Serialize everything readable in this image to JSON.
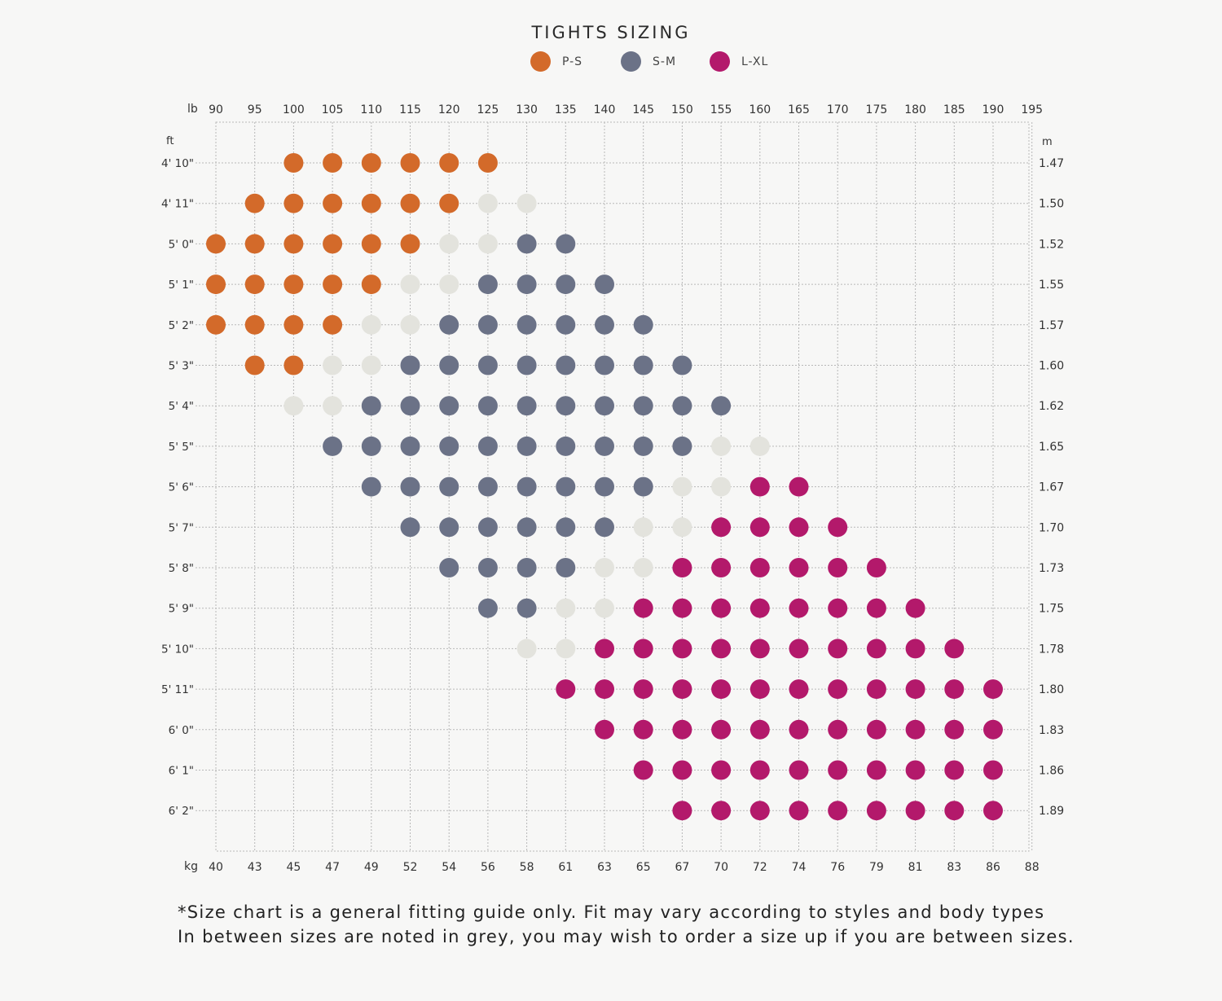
{
  "colors": {
    "background": "#f7f7f6",
    "ps": "#d36a2a",
    "sm": "#6b7287",
    "lxl": "#b3196b",
    "between": "#e3e3dd",
    "grid": "#b8b8b8"
  },
  "chart_data": {
    "type": "scatter",
    "title": "TIGHTS SIZING",
    "legend": [
      {
        "key": "PS",
        "label": "P-S",
        "color": "#d36a2a"
      },
      {
        "key": "SM",
        "label": "S-M",
        "color": "#6b7287"
      },
      {
        "key": "LXL",
        "label": "L-XL",
        "color": "#b3196b"
      }
    ],
    "legend_position": "top-center",
    "grid": true,
    "x_unit_top": "lb",
    "x_unit_bottom": "kg",
    "y_unit_left": "ft",
    "y_unit_right": "m",
    "x_lb": [
      90,
      95,
      100,
      105,
      110,
      115,
      120,
      125,
      130,
      135,
      140,
      145,
      150,
      155,
      160,
      165,
      170,
      175,
      180,
      185,
      190,
      195
    ],
    "x_kg": [
      "40",
      "43",
      "45",
      "47",
      "49",
      "52",
      "54",
      "56",
      "58",
      "61",
      "63",
      "65",
      "67",
      "70",
      "72",
      "74",
      "76",
      "79",
      "81",
      "83",
      "86",
      "88"
    ],
    "y_ft": [
      "4' 10\"",
      "4' 11\"",
      "5' 0\"",
      "5' 1\"",
      "5' 2\"",
      "5' 3\"",
      "5' 4\"",
      "5' 5\"",
      "5' 6\"",
      "5' 7\"",
      "5' 8\"",
      "5' 9\"",
      "5' 10\"",
      "5' 11\"",
      "6' 0\"",
      "6' 1\"",
      "6' 2\""
    ],
    "y_m": [
      "1.47",
      "1.50",
      "1.52",
      "1.55",
      "1.57",
      "1.60",
      "1.62",
      "1.65",
      "1.67",
      "1.70",
      "1.73",
      "1.75",
      "1.78",
      "1.80",
      "1.83",
      "1.86",
      "1.89"
    ],
    "rows": [
      {
        "height": "4' 10\"",
        "PS": [
          100,
          125
        ],
        "between": [],
        "SM": [],
        "LXL": []
      },
      {
        "height": "4' 11\"",
        "PS": [
          95,
          120
        ],
        "between": [
          125,
          130
        ],
        "SM": [],
        "LXL": []
      },
      {
        "height": "5' 0\"",
        "PS": [
          90,
          115
        ],
        "between": [
          120,
          125
        ],
        "SM": [
          130,
          135
        ],
        "LXL": []
      },
      {
        "height": "5' 1\"",
        "PS": [
          90,
          110
        ],
        "between": [
          115,
          120
        ],
        "SM": [
          125,
          140
        ],
        "LXL": []
      },
      {
        "height": "5' 2\"",
        "PS": [
          90,
          105
        ],
        "between": [
          110,
          115
        ],
        "SM": [
          120,
          145
        ],
        "LXL": []
      },
      {
        "height": "5' 3\"",
        "PS": [
          95,
          100
        ],
        "between": [
          105,
          110
        ],
        "SM": [
          115,
          150
        ],
        "LXL": []
      },
      {
        "height": "5' 4\"",
        "PS": [],
        "between": [
          100,
          105
        ],
        "SM": [
          110,
          155
        ],
        "LXL": []
      },
      {
        "height": "5' 5\"",
        "PS": [],
        "between": [
          155,
          160
        ],
        "SM": [
          105,
          150
        ],
        "LXL": []
      },
      {
        "height": "5' 6\"",
        "PS": [],
        "between": [
          150,
          155
        ],
        "SM": [
          110,
          145
        ],
        "LXL": [
          160,
          165
        ]
      },
      {
        "height": "5' 7\"",
        "PS": [],
        "between": [
          145,
          150
        ],
        "SM": [
          115,
          140
        ],
        "LXL": [
          155,
          170
        ]
      },
      {
        "height": "5' 8\"",
        "PS": [],
        "between": [
          140,
          145
        ],
        "SM": [
          120,
          135
        ],
        "LXL": [
          150,
          175
        ]
      },
      {
        "height": "5' 9\"",
        "PS": [],
        "between": [
          135,
          140
        ],
        "SM": [
          125,
          130
        ],
        "LXL": [
          145,
          180
        ]
      },
      {
        "height": "5' 10\"",
        "PS": [],
        "between": [
          130,
          135
        ],
        "SM": [],
        "LXL": [
          140,
          185
        ]
      },
      {
        "height": "5' 11\"",
        "PS": [],
        "between": [],
        "SM": [],
        "LXL": [
          135,
          190
        ]
      },
      {
        "height": "6' 0\"",
        "PS": [],
        "between": [],
        "SM": [],
        "LXL": [
          140,
          190
        ]
      },
      {
        "height": "6' 1\"",
        "PS": [],
        "between": [],
        "SM": [],
        "LXL": [
          145,
          190
        ]
      },
      {
        "height": "6' 2\"",
        "PS": [],
        "between": [],
        "SM": [],
        "LXL": [
          150,
          190
        ]
      }
    ]
  },
  "footnote": {
    "line1": "*Size chart is a general fitting guide only. Fit may vary according to styles and body types",
    "line2": "In between sizes are noted in grey, you may wish to order a size up if you are between sizes."
  }
}
